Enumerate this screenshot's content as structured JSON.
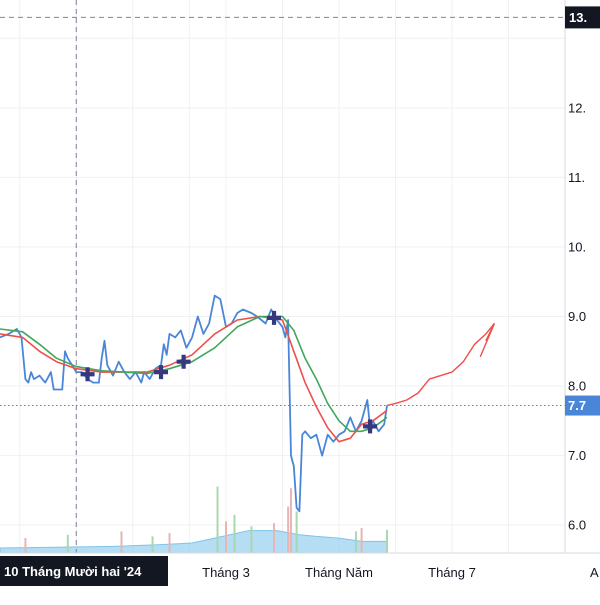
{
  "chart_data": {
    "type": "line",
    "y_axis": {
      "ticks": [
        "13.",
        "12.",
        "11.",
        "10.",
        "9.0",
        "8.0",
        "7.0",
        "6.0"
      ],
      "tick_values": [
        13.0,
        12.0,
        11.0,
        10.0,
        9.0,
        8.0,
        7.0,
        6.0
      ],
      "range": [
        5.6,
        13.55
      ],
      "position": "right"
    },
    "x_axis": {
      "ticks": [
        "Tháng 3",
        "Tháng Năm",
        "Tháng 7"
      ],
      "tick_positions": [
        4.0,
        6.0,
        8.0
      ],
      "range": [
        0.0,
        10.0
      ],
      "crosshair_label": "10 Tháng Mười hai '24",
      "crosshair_position": 1.35,
      "corner_label": "A"
    },
    "crosshair_price_label": "13.",
    "crosshair_price": 13.3,
    "current_price_label": "7.7",
    "current_price": 7.72,
    "grid": true,
    "colors": {
      "price": "#4a86d8",
      "ma_fast": "#ef4f4a",
      "ma_slow": "#3fa85a",
      "projection": "#ef4f4a",
      "volume": "#9cd2f0",
      "marker": "#363a7c",
      "label_bg": "#131722",
      "price_line": "#4a86d8"
    },
    "series": [
      {
        "key": "price",
        "type": "line",
        "points": [
          [
            0.0,
            8.7
          ],
          [
            0.15,
            8.75
          ],
          [
            0.3,
            8.82
          ],
          [
            0.38,
            8.7
          ],
          [
            0.45,
            8.1
          ],
          [
            0.5,
            8.05
          ],
          [
            0.55,
            8.2
          ],
          [
            0.6,
            8.1
          ],
          [
            0.7,
            8.15
          ],
          [
            0.8,
            8.05
          ],
          [
            0.9,
            8.2
          ],
          [
            0.95,
            7.95
          ],
          [
            1.1,
            7.95
          ],
          [
            1.15,
            8.5
          ],
          [
            1.2,
            8.4
          ],
          [
            1.35,
            8.2
          ],
          [
            1.45,
            8.2
          ],
          [
            1.55,
            8.1
          ],
          [
            1.65,
            8.05
          ],
          [
            1.75,
            8.05
          ],
          [
            1.8,
            8.4
          ],
          [
            1.85,
            8.65
          ],
          [
            1.9,
            8.3
          ],
          [
            2.0,
            8.15
          ],
          [
            2.1,
            8.35
          ],
          [
            2.2,
            8.2
          ],
          [
            2.3,
            8.1
          ],
          [
            2.4,
            8.2
          ],
          [
            2.5,
            8.05
          ],
          [
            2.55,
            8.2
          ],
          [
            2.65,
            8.1
          ],
          [
            2.75,
            8.25
          ],
          [
            2.85,
            8.3
          ],
          [
            2.9,
            8.6
          ],
          [
            2.95,
            8.45
          ],
          [
            3.0,
            8.75
          ],
          [
            3.1,
            8.7
          ],
          [
            3.2,
            8.8
          ],
          [
            3.3,
            8.55
          ],
          [
            3.4,
            8.7
          ],
          [
            3.5,
            9.0
          ],
          [
            3.6,
            8.75
          ],
          [
            3.7,
            8.9
          ],
          [
            3.8,
            9.3
          ],
          [
            3.9,
            9.25
          ],
          [
            4.0,
            8.85
          ],
          [
            4.1,
            8.9
          ],
          [
            4.2,
            9.05
          ],
          [
            4.3,
            9.1
          ],
          [
            4.45,
            9.05
          ],
          [
            4.55,
            9.0
          ],
          [
            4.7,
            8.9
          ],
          [
            4.8,
            9.1
          ],
          [
            4.9,
            8.95
          ],
          [
            5.0,
            8.85
          ],
          [
            5.05,
            8.7
          ],
          [
            5.1,
            8.95
          ],
          [
            5.15,
            7.0
          ],
          [
            5.2,
            6.85
          ],
          [
            5.25,
            6.25
          ],
          [
            5.3,
            6.2
          ],
          [
            5.35,
            7.3
          ],
          [
            5.4,
            7.35
          ],
          [
            5.5,
            7.25
          ],
          [
            5.6,
            7.3
          ],
          [
            5.7,
            7.0
          ],
          [
            5.8,
            7.3
          ],
          [
            5.9,
            7.2
          ],
          [
            6.0,
            7.3
          ],
          [
            6.1,
            7.35
          ],
          [
            6.2,
            7.55
          ],
          [
            6.3,
            7.35
          ],
          [
            6.4,
            7.5
          ],
          [
            6.5,
            7.8
          ],
          [
            6.55,
            7.4
          ],
          [
            6.6,
            7.5
          ],
          [
            6.7,
            7.35
          ],
          [
            6.8,
            7.45
          ],
          [
            6.85,
            7.72
          ]
        ]
      },
      {
        "key": "ma_fast",
        "type": "line",
        "points": [
          [
            0.0,
            8.75
          ],
          [
            0.4,
            8.7
          ],
          [
            0.7,
            8.5
          ],
          [
            1.0,
            8.35
          ],
          [
            1.35,
            8.25
          ],
          [
            1.8,
            8.2
          ],
          [
            2.2,
            8.2
          ],
          [
            2.6,
            8.2
          ],
          [
            3.0,
            8.3
          ],
          [
            3.4,
            8.45
          ],
          [
            3.8,
            8.75
          ],
          [
            4.2,
            8.95
          ],
          [
            4.6,
            9.0
          ],
          [
            5.0,
            8.95
          ],
          [
            5.2,
            8.5
          ],
          [
            5.4,
            8.05
          ],
          [
            5.6,
            7.7
          ],
          [
            5.8,
            7.4
          ],
          [
            6.0,
            7.2
          ],
          [
            6.2,
            7.25
          ],
          [
            6.4,
            7.45
          ],
          [
            6.6,
            7.5
          ],
          [
            6.85,
            7.65
          ]
        ]
      },
      {
        "key": "ma_slow",
        "type": "line",
        "points": [
          [
            0.0,
            8.82
          ],
          [
            0.4,
            8.78
          ],
          [
            0.7,
            8.6
          ],
          [
            1.0,
            8.4
          ],
          [
            1.35,
            8.28
          ],
          [
            1.8,
            8.22
          ],
          [
            2.2,
            8.2
          ],
          [
            2.6,
            8.18
          ],
          [
            3.0,
            8.25
          ],
          [
            3.4,
            8.35
          ],
          [
            3.8,
            8.55
          ],
          [
            4.2,
            8.85
          ],
          [
            4.6,
            9.0
          ],
          [
            5.0,
            9.0
          ],
          [
            5.2,
            8.8
          ],
          [
            5.4,
            8.4
          ],
          [
            5.6,
            8.1
          ],
          [
            5.8,
            7.75
          ],
          [
            6.0,
            7.5
          ],
          [
            6.2,
            7.35
          ],
          [
            6.4,
            7.35
          ],
          [
            6.6,
            7.4
          ],
          [
            6.85,
            7.55
          ]
        ]
      },
      {
        "key": "projection",
        "type": "line",
        "points": [
          [
            6.85,
            7.72
          ],
          [
            7.0,
            7.75
          ],
          [
            7.2,
            7.8
          ],
          [
            7.4,
            7.9
          ],
          [
            7.6,
            8.1
          ],
          [
            7.8,
            8.15
          ],
          [
            8.0,
            8.2
          ],
          [
            8.2,
            8.35
          ],
          [
            8.4,
            8.6
          ],
          [
            8.6,
            8.75
          ],
          [
            8.75,
            8.9
          ]
        ],
        "arrow_head": [
          [
            8.6,
            8.65
          ],
          [
            8.5,
            8.42
          ]
        ]
      }
    ],
    "markers": [
      {
        "x": 1.55,
        "y": 8.17
      },
      {
        "x": 2.85,
        "y": 8.2
      },
      {
        "x": 3.25,
        "y": 8.35
      },
      {
        "x": 4.85,
        "y": 8.98
      },
      {
        "x": 6.55,
        "y": 7.42
      }
    ],
    "volume": {
      "area": [
        [
          0.0,
          0.06
        ],
        [
          1.0,
          0.07
        ],
        [
          2.0,
          0.08
        ],
        [
          2.8,
          0.1
        ],
        [
          3.4,
          0.12
        ],
        [
          3.8,
          0.18
        ],
        [
          4.4,
          0.27
        ],
        [
          4.9,
          0.27
        ],
        [
          5.3,
          0.22
        ],
        [
          5.6,
          0.2
        ],
        [
          6.0,
          0.18
        ],
        [
          6.4,
          0.14
        ],
        [
          6.85,
          0.14
        ]
      ],
      "bars": [
        {
          "x": 0.45,
          "v": 0.18,
          "c": "#e8b4b4"
        },
        {
          "x": 1.2,
          "v": 0.22,
          "c": "#a8d8b0"
        },
        {
          "x": 2.15,
          "v": 0.26,
          "c": "#e8b4b4"
        },
        {
          "x": 2.7,
          "v": 0.2,
          "c": "#a8d8b0"
        },
        {
          "x": 3.0,
          "v": 0.24,
          "c": "#e8b4b4"
        },
        {
          "x": 3.85,
          "v": 0.8,
          "c": "#a8d8b0"
        },
        {
          "x": 4.0,
          "v": 0.38,
          "c": "#e8b4b4"
        },
        {
          "x": 4.15,
          "v": 0.46,
          "c": "#a8d8b0"
        },
        {
          "x": 4.45,
          "v": 0.32,
          "c": "#a8d8b0"
        },
        {
          "x": 4.85,
          "v": 0.36,
          "c": "#e8b4b4"
        },
        {
          "x": 5.1,
          "v": 0.56,
          "c": "#e8b4b4"
        },
        {
          "x": 5.15,
          "v": 0.78,
          "c": "#e8b4b4"
        },
        {
          "x": 5.25,
          "v": 0.5,
          "c": "#a8d8b0"
        },
        {
          "x": 6.3,
          "v": 0.26,
          "c": "#a8d8b0"
        },
        {
          "x": 6.4,
          "v": 0.3,
          "c": "#e8b4b4"
        },
        {
          "x": 6.85,
          "v": 0.28,
          "c": "#a8d8b0"
        }
      ]
    }
  }
}
